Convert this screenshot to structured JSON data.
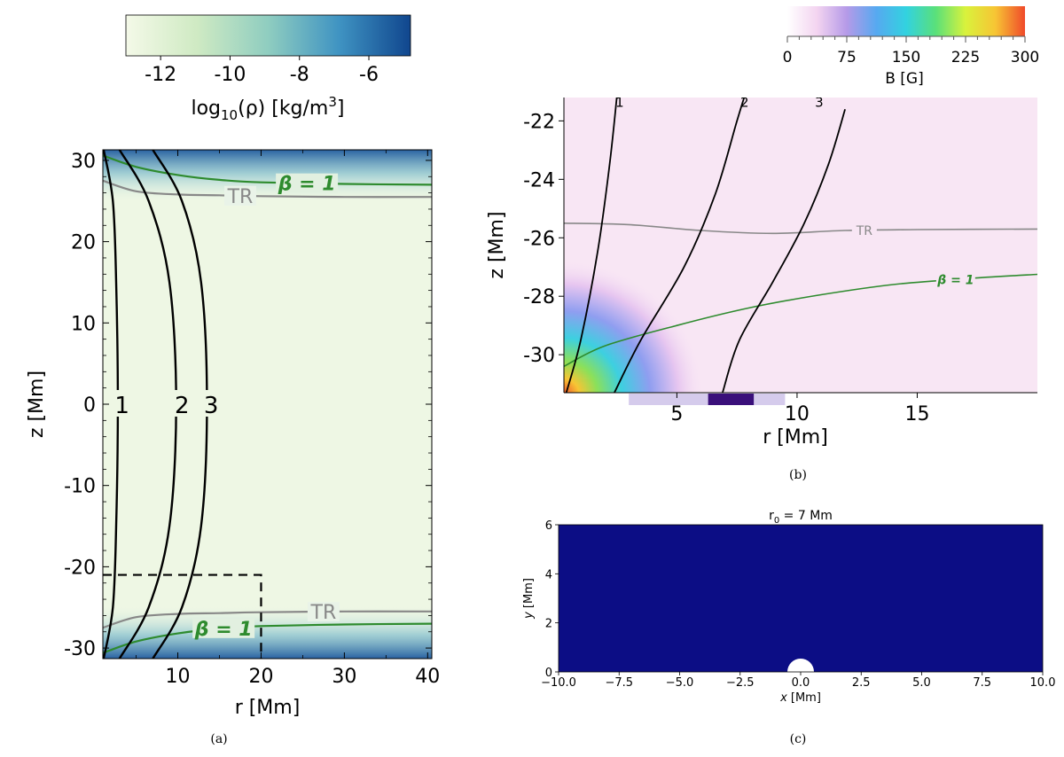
{
  "figure": {
    "panels": [
      {
        "caption": "(a)",
        "chart_data": {
          "type": "heatmap",
          "xlabel": "r [Mm]",
          "ylabel": "z [Mm]",
          "xlim": [
            1,
            40.5
          ],
          "ylim": [
            -31.3,
            31.3
          ],
          "xticks": [
            10,
            20,
            30,
            40
          ],
          "yticks": [
            -30,
            -20,
            -10,
            0,
            10,
            20,
            30
          ],
          "colorbar": {
            "label_base": "log",
            "label_sub": "10",
            "label_rest": "(ρ) [kg/m",
            "label_sup": "3",
            "label_end": "]",
            "ticks": [
              -12,
              -10,
              -8,
              -6
            ],
            "range": [
              -13,
              -4.8
            ],
            "colors": [
              "#f4f9e8",
              "#cfeac3",
              "#8fcdc0",
              "#3f93c2",
              "#10468e"
            ]
          },
          "contours": [
            {
              "name": "TR",
              "color": "#888888",
              "points": [
                [
                  1,
                  27.5
                ],
                [
                  5,
                  26.2
                ],
                [
                  10,
                  25.8
                ],
                [
                  15,
                  25.7
                ],
                [
                  20,
                  25.6
                ],
                [
                  30,
                  25.5
                ],
                [
                  40.5,
                  25.5
                ]
              ]
            },
            {
              "name": "TR",
              "color": "#888888",
              "points": [
                [
                  1,
                  -27.5
                ],
                [
                  5,
                  -26.2
                ],
                [
                  10,
                  -25.8
                ],
                [
                  15,
                  -25.7
                ],
                [
                  20,
                  -25.6
                ],
                [
                  30,
                  -25.5
                ],
                [
                  40.5,
                  -25.5
                ]
              ]
            },
            {
              "name": "β = 1",
              "color": "#2e8b2e",
              "points": [
                [
                  1,
                  30.6
                ],
                [
                  5,
                  29.2
                ],
                [
                  10,
                  28.2
                ],
                [
                  15,
                  27.6
                ],
                [
                  20,
                  27.3
                ],
                [
                  30,
                  27.1
                ],
                [
                  40.5,
                  27.0
                ]
              ]
            },
            {
              "name": "β = 1",
              "color": "#2e8b2e",
              "points": [
                [
                  1,
                  -30.6
                ],
                [
                  5,
                  -29.2
                ],
                [
                  10,
                  -28.2
                ],
                [
                  15,
                  -27.6
                ],
                [
                  20,
                  -27.3
                ],
                [
                  30,
                  -27.1
                ],
                [
                  40.5,
                  -27.0
                ]
              ]
            }
          ],
          "fieldlines": [
            {
              "name": "1",
              "label_x": 3.3,
              "points": [
                [
                  1.1,
                  31.3
                ],
                [
                  2.2,
                  25
                ],
                [
                  2.6,
                  15
                ],
                [
                  2.8,
                  0
                ],
                [
                  2.6,
                  -15
                ],
                [
                  2.2,
                  -25
                ],
                [
                  1.1,
                  -31.3
                ]
              ]
            },
            {
              "name": "2",
              "label_x": 10.5,
              "points": [
                [
                  3,
                  31.3
                ],
                [
                  6.5,
                  25
                ],
                [
                  9,
                  15
                ],
                [
                  9.8,
                  0
                ],
                [
                  9,
                  -15
                ],
                [
                  6.5,
                  -25
                ],
                [
                  3,
                  -31.3
                ]
              ]
            },
            {
              "name": "3",
              "label_x": 14,
              "points": [
                [
                  7,
                  31.3
                ],
                [
                  10.5,
                  25
                ],
                [
                  12.8,
                  15
                ],
                [
                  13.5,
                  0
                ],
                [
                  12.8,
                  -15
                ],
                [
                  10.5,
                  -25
                ],
                [
                  7,
                  -31.3
                ]
              ]
            }
          ],
          "inset_box": {
            "r": [
              1,
              20
            ],
            "z": [
              -31.3,
              -21
            ]
          },
          "annotations": [
            "TR",
            "TR",
            "β = 1",
            "β = 1"
          ]
        }
      },
      {
        "caption": "(b)",
        "chart_data": {
          "type": "heatmap",
          "xlabel": "r [Mm]",
          "ylabel": "z [Mm]",
          "xlim": [
            0.3,
            20
          ],
          "ylim": [
            -31.3,
            -21.2
          ],
          "xticks": [
            5,
            10,
            15
          ],
          "yticks": [
            -30,
            -28,
            -26,
            -24,
            -22
          ],
          "colorbar": {
            "label": "B [G]",
            "ticks": [
              0,
              75,
              150,
              225,
              300
            ],
            "range": [
              0,
              300
            ],
            "colors": [
              "#ffffff",
              "#f3d4f0",
              "#b59ae8",
              "#56a9f0",
              "#32d2e0",
              "#5ae07a",
              "#d9f23c",
              "#f7c534",
              "#f04a2a"
            ]
          },
          "contours": [
            {
              "name": "TR",
              "color": "#888888",
              "points": [
                [
                  0.3,
                  -25.5
                ],
                [
                  3,
                  -25.55
                ],
                [
                  6,
                  -25.75
                ],
                [
                  9,
                  -25.85
                ],
                [
                  12,
                  -25.75
                ],
                [
                  15,
                  -25.72
                ],
                [
                  20,
                  -25.7
                ]
              ]
            },
            {
              "name": "β = 1",
              "color": "#2e8b2e",
              "points": [
                [
                  0.3,
                  -30.4
                ],
                [
                  2,
                  -29.7
                ],
                [
                  5,
                  -29.0
                ],
                [
                  8,
                  -28.4
                ],
                [
                  11,
                  -27.95
                ],
                [
                  14,
                  -27.6
                ],
                [
                  17,
                  -27.4
                ],
                [
                  20,
                  -27.25
                ]
              ]
            }
          ],
          "fieldlines": [
            {
              "name": "1",
              "points": [
                [
                  0.4,
                  -31.3
                ],
                [
                  1.0,
                  -29.5
                ],
                [
                  1.7,
                  -26.5
                ],
                [
                  2.2,
                  -23.5
                ],
                [
                  2.5,
                  -21.2
                ]
              ]
            },
            {
              "name": "2",
              "points": [
                [
                  2.4,
                  -31.3
                ],
                [
                  3.5,
                  -29.5
                ],
                [
                  5.3,
                  -27.0
                ],
                [
                  6.6,
                  -24.5
                ],
                [
                  7.5,
                  -22
                ],
                [
                  7.8,
                  -21.2
                ]
              ]
            },
            {
              "name": "3",
              "points": [
                [
                  6.9,
                  -31.3
                ],
                [
                  7.6,
                  -29.5
                ],
                [
                  9.0,
                  -27.5
                ],
                [
                  10.3,
                  -25.5
                ],
                [
                  11.3,
                  -23.5
                ],
                [
                  12.0,
                  -21.6
                ]
              ]
            }
          ],
          "annotations": [
            "TR",
            "β = 1"
          ]
        }
      },
      {
        "caption": "(c)",
        "chart_data": {
          "type": "heatmap",
          "title_main": "r",
          "title_sub": "0",
          "title_rest": " = 7 Mm",
          "xlabel_italic": "x",
          "xlabel_rest": " [Mm]",
          "ylabel_italic": "y",
          "ylabel_rest": " [Mm]",
          "xlim": [
            -10,
            10
          ],
          "ylim": [
            0,
            6
          ],
          "xticks": [
            "−10.0",
            "−7.5",
            "−5.0",
            "−2.5",
            "0.0",
            "2.5",
            "5.0",
            "7.5",
            "10.0"
          ],
          "xtick_values": [
            -10,
            -7.5,
            -5,
            -2.5,
            0,
            2.5,
            5,
            7.5,
            10
          ],
          "yticks": [
            0,
            2,
            4,
            6
          ],
          "background_color": "#0c0d85",
          "hotspot": {
            "center": [
              7,
              0
            ],
            "colors": [
              "#fff176",
              "#f9b23c",
              "#e3572e",
              "#b0207a",
              "#5a0f94",
              "#0c0d85"
            ]
          },
          "cutout": {
            "center": [
              0,
              0
            ],
            "radius": 0.55
          }
        }
      }
    ]
  }
}
